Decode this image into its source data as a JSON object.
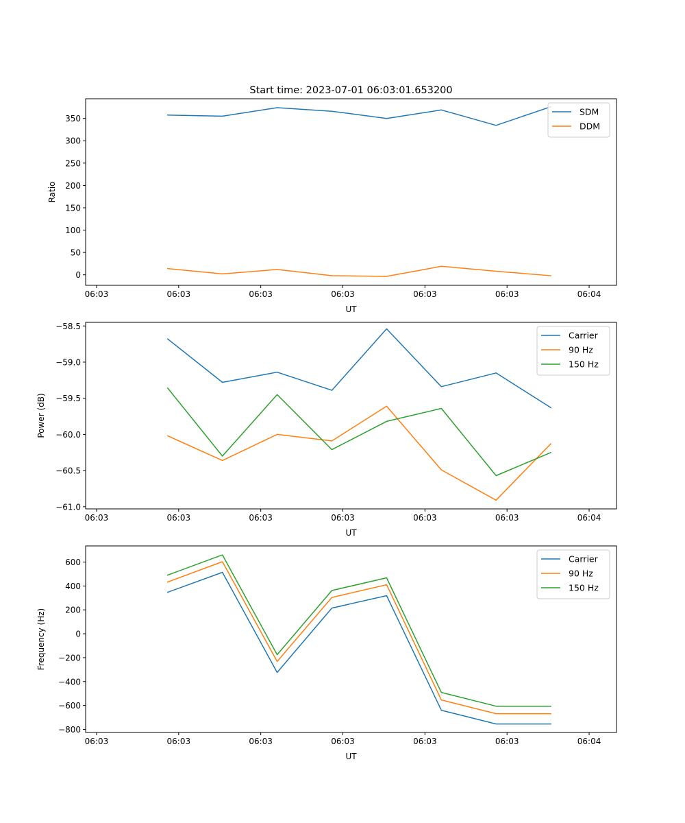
{
  "figure_title": "Start time: 2023-07-01 06:03:01.653200",
  "chart_data": [
    {
      "type": "line",
      "title": "Start time: 2023-07-01 06:03:01.653200",
      "xlabel": "UT",
      "ylabel": "Ratio",
      "x": [
        1,
        2,
        3,
        4,
        5,
        6,
        7,
        8
      ],
      "xlim": [
        -0.5,
        9.2
      ],
      "x_ticks": [
        -0.3,
        1.2,
        2.7,
        4.2,
        5.7,
        7.2,
        8.7
      ],
      "x_tick_labels": [
        "06:03",
        "06:03",
        "06:03",
        "06:03",
        "06:03",
        "06:03",
        "06:04"
      ],
      "ylim": [
        -23.5,
        394
      ],
      "y_ticks": [
        0,
        50,
        100,
        150,
        200,
        250,
        300,
        350
      ],
      "y_tick_labels": [
        "0",
        "50",
        "100",
        "150",
        "200",
        "250",
        "300",
        "350"
      ],
      "grid": false,
      "legend_position": "top-right",
      "series": [
        {
          "name": "SDM",
          "color": "#1f77b4",
          "values": [
            357.5,
            355,
            374,
            366,
            350,
            369,
            334.5,
            376
          ]
        },
        {
          "name": "DDM",
          "color": "#ff7f0e",
          "values": [
            14,
            2,
            12,
            -2,
            -3.5,
            19,
            8,
            -2
          ]
        }
      ]
    },
    {
      "type": "line",
      "title": "",
      "xlabel": "UT",
      "ylabel": "Power (dB)",
      "x": [
        1,
        2,
        3,
        4,
        5,
        6,
        7,
        8
      ],
      "xlim": [
        -0.5,
        9.2
      ],
      "x_ticks": [
        -0.3,
        1.2,
        2.7,
        4.2,
        5.7,
        7.2,
        8.7
      ],
      "x_tick_labels": [
        "06:03",
        "06:03",
        "06:03",
        "06:03",
        "06:03",
        "06:03",
        "06:04"
      ],
      "ylim": [
        -61.03,
        -58.45
      ],
      "y_ticks": [
        -61.0,
        -60.5,
        -60.0,
        -59.5,
        -59.0,
        -58.5
      ],
      "y_tick_labels": [
        "−61.0",
        "−60.5",
        "−60.0",
        "−59.5",
        "−59.0",
        "−58.5"
      ],
      "grid": false,
      "legend_position": "top-right",
      "series": [
        {
          "name": "Carrier",
          "color": "#1f77b4",
          "values": [
            -58.68,
            -59.28,
            -59.14,
            -59.39,
            -58.54,
            -59.34,
            -59.15,
            -59.63
          ]
        },
        {
          "name": "90 Hz",
          "color": "#ff7f0e",
          "values": [
            -60.02,
            -60.36,
            -60.0,
            -60.09,
            -59.61,
            -60.49,
            -60.91,
            -60.13
          ]
        },
        {
          "name": "150 Hz",
          "color": "#2ca02c",
          "values": [
            -59.36,
            -60.3,
            -59.45,
            -60.21,
            -59.82,
            -59.64,
            -60.57,
            -60.25
          ]
        }
      ]
    },
    {
      "type": "line",
      "title": "",
      "xlabel": "UT",
      "ylabel": "Frequency (Hz)",
      "x": [
        1,
        2,
        3,
        4,
        5,
        6,
        7,
        8
      ],
      "xlim": [
        -0.5,
        9.2
      ],
      "x_ticks": [
        -0.3,
        1.2,
        2.7,
        4.2,
        5.7,
        7.2,
        8.7
      ],
      "x_tick_labels": [
        "06:03",
        "06:03",
        "06:03",
        "06:03",
        "06:03",
        "06:03",
        "06:04"
      ],
      "ylim": [
        -826,
        735
      ],
      "y_ticks": [
        -800,
        -600,
        -400,
        -200,
        0,
        200,
        400,
        600
      ],
      "y_tick_labels": [
        "−800",
        "−600",
        "−400",
        "−200",
        "0",
        "200",
        "400",
        "600"
      ],
      "grid": false,
      "legend_position": "top-right",
      "series": [
        {
          "name": "Carrier",
          "color": "#1f77b4",
          "values": [
            347,
            514,
            -324,
            215,
            319,
            -640,
            -755,
            -755
          ]
        },
        {
          "name": "90 Hz",
          "color": "#ff7f0e",
          "values": [
            433,
            603,
            -232,
            304,
            410,
            -554,
            -669,
            -669
          ]
        },
        {
          "name": "150 Hz",
          "color": "#2ca02c",
          "values": [
            491,
            660,
            -175,
            362,
            468,
            -491,
            -606,
            -606
          ]
        }
      ]
    }
  ]
}
